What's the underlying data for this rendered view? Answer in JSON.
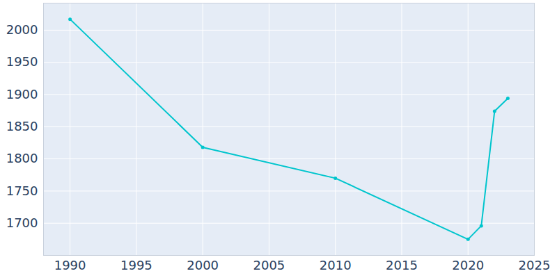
{
  "chart_data": {
    "type": "line",
    "x": [
      1990,
      2000,
      2010,
      2020,
      2021,
      2022,
      2023
    ],
    "values": [
      2017,
      1818,
      1770,
      1675,
      1696,
      1874,
      1894
    ],
    "color": "#00c5cd",
    "marker": "circle",
    "xlim": [
      1988,
      2025
    ],
    "ylim": [
      1650,
      2042
    ],
    "xticks": [
      1990,
      1995,
      2000,
      2005,
      2010,
      2015,
      2020,
      2025
    ],
    "yticks": [
      1700,
      1750,
      1800,
      1850,
      1900,
      1950,
      2000
    ],
    "grid": true
  }
}
